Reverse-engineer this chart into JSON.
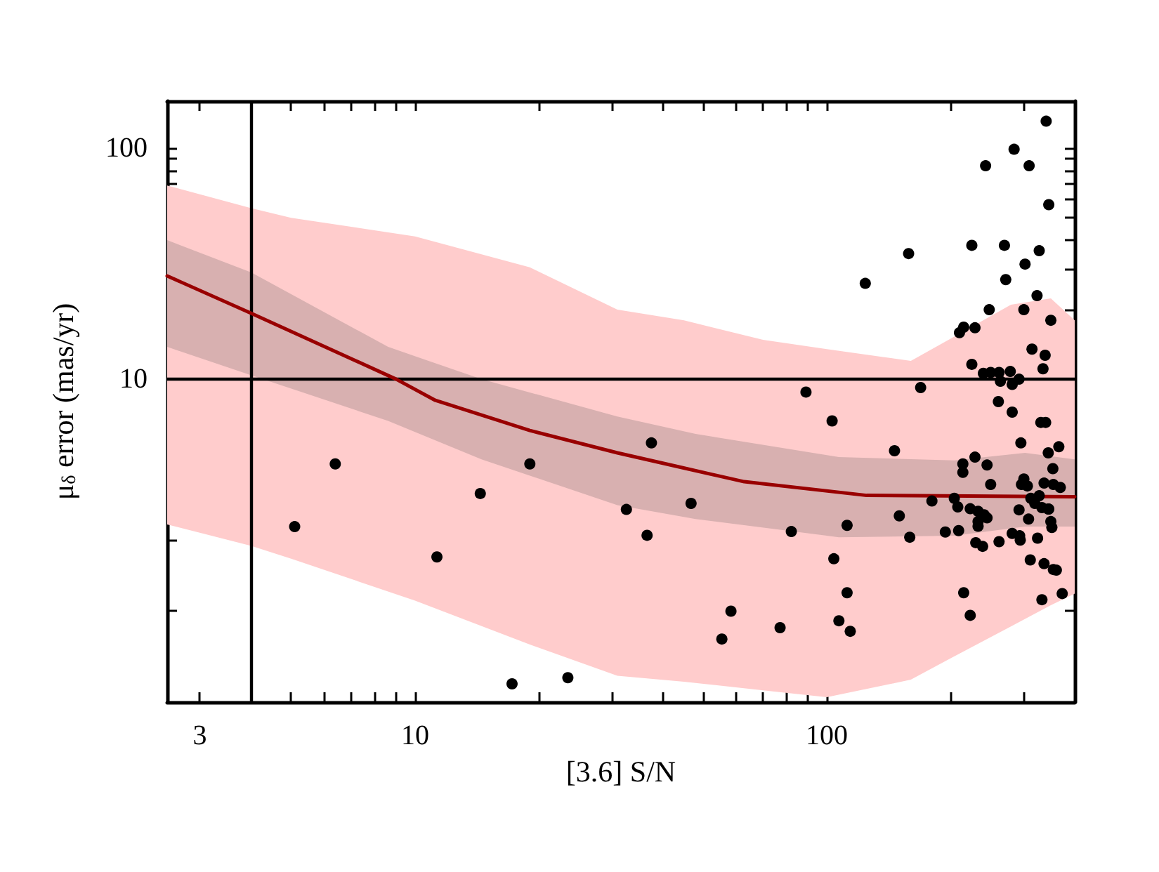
{
  "chart_data": {
    "type": "scatter",
    "xlabel": "[3.6] S/N",
    "ylabel": "μ$_{δ}$ error (mas/yr)",
    "log": "xy",
    "xlim": [
      2.5,
      400
    ],
    "ylim": [
      0.4,
      160
    ],
    "xticks": [
      3,
      {
        "value": 4,
        "label": null
      },
      {
        "value": 5,
        "label": null
      },
      {
        "value": 6,
        "label": null
      },
      {
        "value": 7,
        "label": null
      },
      {
        "value": 8,
        "label": null
      },
      {
        "value": 9,
        "label": null
      },
      10,
      {
        "value": 20,
        "label": null
      },
      {
        "value": 30,
        "label": null
      },
      {
        "value": 40,
        "label": null
      },
      {
        "value": 50,
        "label": null
      },
      {
        "value": 60,
        "label": null
      },
      {
        "value": 70,
        "label": null
      },
      {
        "value": 80,
        "label": null
      },
      {
        "value": 90,
        "label": null
      },
      100,
      {
        "value": 200,
        "label": null
      },
      {
        "value": 300,
        "label": null
      }
    ],
    "yticks": [
      {
        "value": 1,
        "label": null
      },
      {
        "value": 2,
        "label": null
      },
      {
        "value": 3,
        "label": null
      },
      {
        "value": 4,
        "label": null
      },
      {
        "value": 5,
        "label": null
      },
      {
        "value": 6,
        "label": null
      },
      {
        "value": 7,
        "label": null
      },
      {
        "value": 8,
        "label": null
      },
      {
        "value": 9,
        "label": null
      },
      10,
      {
        "value": 20,
        "label": null
      },
      {
        "value": 30,
        "label": null
      },
      {
        "value": 40,
        "label": null
      },
      {
        "value": 50,
        "label": null
      },
      {
        "value": 60,
        "label": null
      },
      {
        "value": 70,
        "label": null
      },
      {
        "value": 80,
        "label": null
      },
      {
        "value": 90,
        "label": null
      },
      100
    ],
    "grid": false,
    "legend": false,
    "ref_lines": [
      {
        "axis": "y",
        "value": 10,
        "color": "#000000"
      },
      {
        "axis": "x",
        "value": 4,
        "color": "#000000"
      }
    ],
    "series": [
      {
        "type": "line",
        "color": "#ffcccc",
        "x": [
          2.5,
          4,
          5,
          10,
          19,
          31,
          45,
          70,
          100,
          160,
          200,
          280,
          350,
          400
        ],
        "values": [
          null,
          null,
          null,
          null,
          null,
          null,
          null,
          null,
          null,
          null,
          null,
          null,
          null,
          null
        ],
        "lower": [
          2.35,
          1.9,
          1.67,
          1.1,
          0.71,
          0.52,
          0.49,
          0.45,
          0.42,
          0.5,
          0.62,
          0.85,
          1.05,
          1.18
        ],
        "upper": [
          69,
          55,
          50,
          41.5,
          30.5,
          20,
          18,
          14.8,
          13.5,
          12,
          15,
          21,
          22.4,
          18
        ]
      },
      {
        "type": "line",
        "color": "#d8b0b0",
        "x": [
          2.5,
          4,
          8.6,
          14.5,
          31,
          48,
          107,
          204,
          303,
          400
        ],
        "values": [
          null,
          null,
          null,
          null,
          null,
          null,
          null,
          null,
          null,
          null
        ],
        "lower": [
          13.8,
          10.4,
          6.6,
          4.5,
          2.85,
          2.48,
          2.07,
          2.1,
          2.3,
          2.3
        ],
        "upper": [
          40,
          29,
          13.8,
          10,
          6.9,
          5.8,
          4.6,
          4.45,
          4.8,
          4.5
        ]
      },
      {
        "type": "line",
        "color": "#990000",
        "marker": "none",
        "x": [
          2.5,
          4,
          9,
          11.2,
          19,
          31,
          43,
          63,
          125,
          400
        ],
        "values": [
          28,
          19.3,
          10,
          8.1,
          6.0,
          4.8,
          4.2,
          3.6,
          3.14,
          3.1
        ]
      },
      {
        "color": "#000000",
        "marker": "circle",
        "x": [
          6.4,
          5.1,
          11.3,
          14.4,
          19,
          17.2,
          23.5,
          341,
          285,
          243,
          310,
          346,
          225,
          270,
          158,
          328,
          303,
          272,
          124,
          324,
          248,
          301,
          350,
          210,
          215,
          229,
          315,
          339,
          335,
          225,
          240,
          250,
          262,
          279,
          264,
          282,
          293,
          89,
          169,
          261,
          282,
          103,
          331,
          340,
          296,
          37.5,
          366,
          345,
          146,
          229,
          214,
          245,
          214,
          354,
          250,
          301,
          307,
          297,
          337,
          355,
          369,
          313,
          328,
          320,
          333,
          345,
          32.6,
          46.8,
          180,
          204,
          208,
          223,
          233,
          241,
          245,
          233,
          233,
          293,
          346,
          350,
          352,
          309,
          150,
          36.6,
          82,
          112,
          159,
          194,
          209,
          262,
          282,
          294,
          295,
          325,
          230,
          239,
          104,
          312,
          337,
          355,
          361,
          112,
          215,
          373,
          333,
          223,
          58.5,
          77,
          107,
          114,
          55.6
        ],
        "values": [
          4.3,
          2.3,
          1.7,
          3.2,
          4.3,
          0.48,
          0.51,
          131,
          99,
          84,
          84,
          57,
          38,
          38,
          35,
          36,
          31.5,
          27,
          26,
          23,
          20,
          20,
          18,
          15.9,
          16.8,
          16.7,
          13.5,
          12.7,
          11.1,
          11.6,
          10.6,
          10.7,
          10.7,
          10.8,
          9.8,
          9.5,
          10,
          8.8,
          9.2,
          8,
          7.2,
          6.6,
          6.5,
          6.5,
          5.3,
          5.3,
          5.1,
          4.8,
          4.9,
          4.6,
          4.3,
          4.25,
          3.95,
          4.1,
          3.5,
          3.7,
          3.45,
          3.5,
          3.55,
          3.5,
          3.4,
          3.05,
          3.13,
          2.9,
          2.78,
          2.74,
          2.73,
          2.9,
          2.97,
          3.05,
          2.8,
          2.75,
          2.68,
          2.59,
          2.51,
          2.42,
          2.31,
          2.72,
          2.74,
          2.42,
          2.28,
          2.48,
          2.56,
          2.11,
          2.19,
          2.33,
          2.07,
          2.18,
          2.21,
          1.98,
          2.15,
          2.1,
          2.01,
          2.05,
          1.96,
          1.89,
          1.67,
          1.65,
          1.59,
          1.5,
          1.49,
          1.19,
          1.19,
          1.18,
          1.11,
          0.95,
          0.99,
          0.84,
          0.9,
          0.81,
          0.75
        ]
      }
    ]
  }
}
